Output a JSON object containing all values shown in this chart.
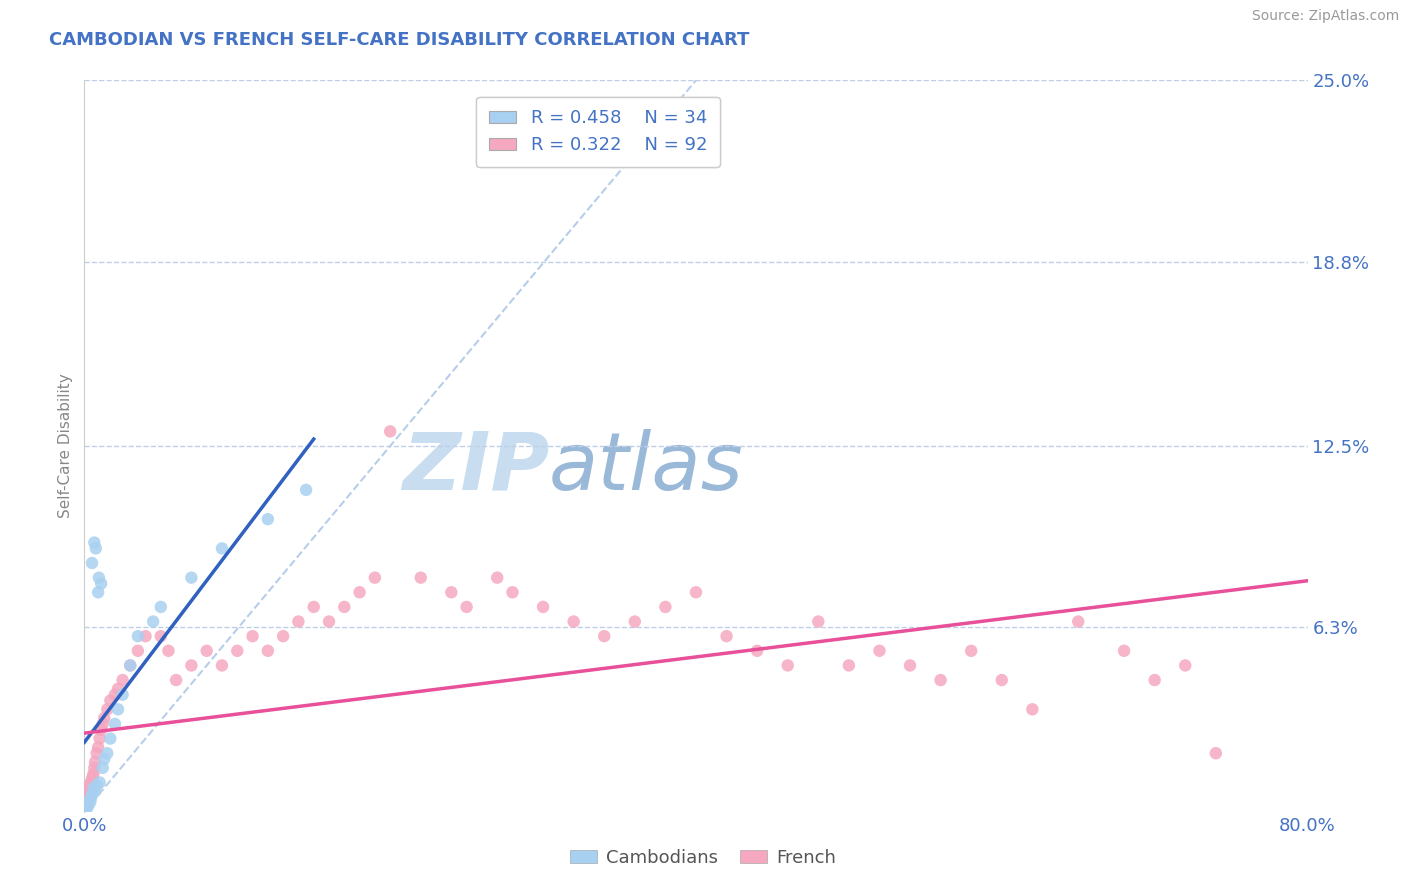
{
  "title": "CAMBODIAN VS FRENCH SELF-CARE DISABILITY CORRELATION CHART",
  "source": "Source: ZipAtlas.com",
  "ylabel": "Self-Care Disability",
  "xlim": [
    0.0,
    80.0
  ],
  "ylim": [
    0.0,
    25.0
  ],
  "x_tick_labels": [
    "0.0%",
    "80.0%"
  ],
  "y_tick_labels": [
    "",
    "6.3%",
    "12.5%",
    "18.8%",
    "25.0%"
  ],
  "y_ticks": [
    0.0,
    6.3,
    12.5,
    18.8,
    25.0
  ],
  "cambodian_color": "#a8d0f0",
  "french_color": "#f5a8c0",
  "cambodian_line_color": "#3060c0",
  "french_line_color": "#e8509a",
  "title_color": "#4472c4",
  "tick_label_color": "#4472c4",
  "watermark_zip_color": "#c8ddf0",
  "watermark_atlas_color": "#9ab8d8",
  "grid_color": "#c0cfe8",
  "diag_color": "#b0c8e8",
  "cambodian_x": [
    0.1,
    0.15,
    0.2,
    0.25,
    0.3,
    0.35,
    0.4,
    0.45,
    0.5,
    0.5,
    0.6,
    0.65,
    0.7,
    0.75,
    0.8,
    0.9,
    0.95,
    1.0,
    1.1,
    1.2,
    1.3,
    1.5,
    1.7,
    2.0,
    2.2,
    2.5,
    3.0,
    3.5,
    4.5,
    5.0,
    7.0,
    9.0,
    12.0,
    14.5
  ],
  "cambodian_y": [
    0.1,
    0.2,
    0.15,
    0.3,
    0.25,
    0.4,
    0.35,
    0.5,
    0.6,
    8.5,
    0.8,
    9.2,
    0.7,
    9.0,
    0.9,
    7.5,
    8.0,
    1.0,
    7.8,
    1.5,
    1.8,
    2.0,
    2.5,
    3.0,
    3.5,
    4.0,
    5.0,
    6.0,
    6.5,
    7.0,
    8.0,
    9.0,
    10.0,
    11.0
  ],
  "french_x": [
    0.1,
    0.12,
    0.15,
    0.18,
    0.2,
    0.22,
    0.25,
    0.28,
    0.3,
    0.32,
    0.35,
    0.38,
    0.4,
    0.42,
    0.45,
    0.5,
    0.55,
    0.6,
    0.65,
    0.7,
    0.8,
    0.9,
    1.0,
    1.1,
    1.2,
    1.3,
    1.5,
    1.7,
    2.0,
    2.2,
    2.5,
    3.0,
    3.5,
    4.0,
    5.0,
    5.5,
    6.0,
    7.0,
    8.0,
    9.0,
    10.0,
    11.0,
    12.0,
    13.0,
    14.0,
    15.0,
    16.0,
    17.0,
    18.0,
    19.0,
    20.0,
    22.0,
    24.0,
    25.0,
    27.0,
    28.0,
    30.0,
    32.0,
    34.0,
    36.0,
    38.0,
    40.0,
    42.0,
    44.0,
    46.0,
    48.0,
    50.0,
    52.0,
    54.0,
    56.0,
    58.0,
    60.0,
    62.0,
    65.0,
    68.0,
    70.0,
    72.0,
    74.0,
    0.08,
    0.09,
    0.11,
    0.13,
    0.16,
    0.19,
    0.23,
    0.26,
    0.29,
    0.33,
    0.36,
    0.48,
    0.52,
    0.57
  ],
  "french_y": [
    0.3,
    0.4,
    0.35,
    0.5,
    0.45,
    0.6,
    0.55,
    0.7,
    0.65,
    0.8,
    0.75,
    0.9,
    0.85,
    1.0,
    0.95,
    1.1,
    1.2,
    1.3,
    1.5,
    1.7,
    2.0,
    2.2,
    2.5,
    2.8,
    3.0,
    3.2,
    3.5,
    3.8,
    4.0,
    4.2,
    4.5,
    5.0,
    5.5,
    6.0,
    6.0,
    5.5,
    4.5,
    5.0,
    5.5,
    5.0,
    5.5,
    6.0,
    5.5,
    6.0,
    6.5,
    7.0,
    6.5,
    7.0,
    7.5,
    8.0,
    13.0,
    8.0,
    7.5,
    7.0,
    8.0,
    7.5,
    7.0,
    6.5,
    6.0,
    6.5,
    7.0,
    7.5,
    6.0,
    5.5,
    5.0,
    6.5,
    5.0,
    5.5,
    5.0,
    4.5,
    5.5,
    4.5,
    3.5,
    6.5,
    5.5,
    4.5,
    5.0,
    2.0,
    0.2,
    0.25,
    0.3,
    0.35,
    0.4,
    0.45,
    0.5,
    0.55,
    0.6,
    0.65,
    0.7,
    0.8,
    0.85,
    0.9
  ]
}
